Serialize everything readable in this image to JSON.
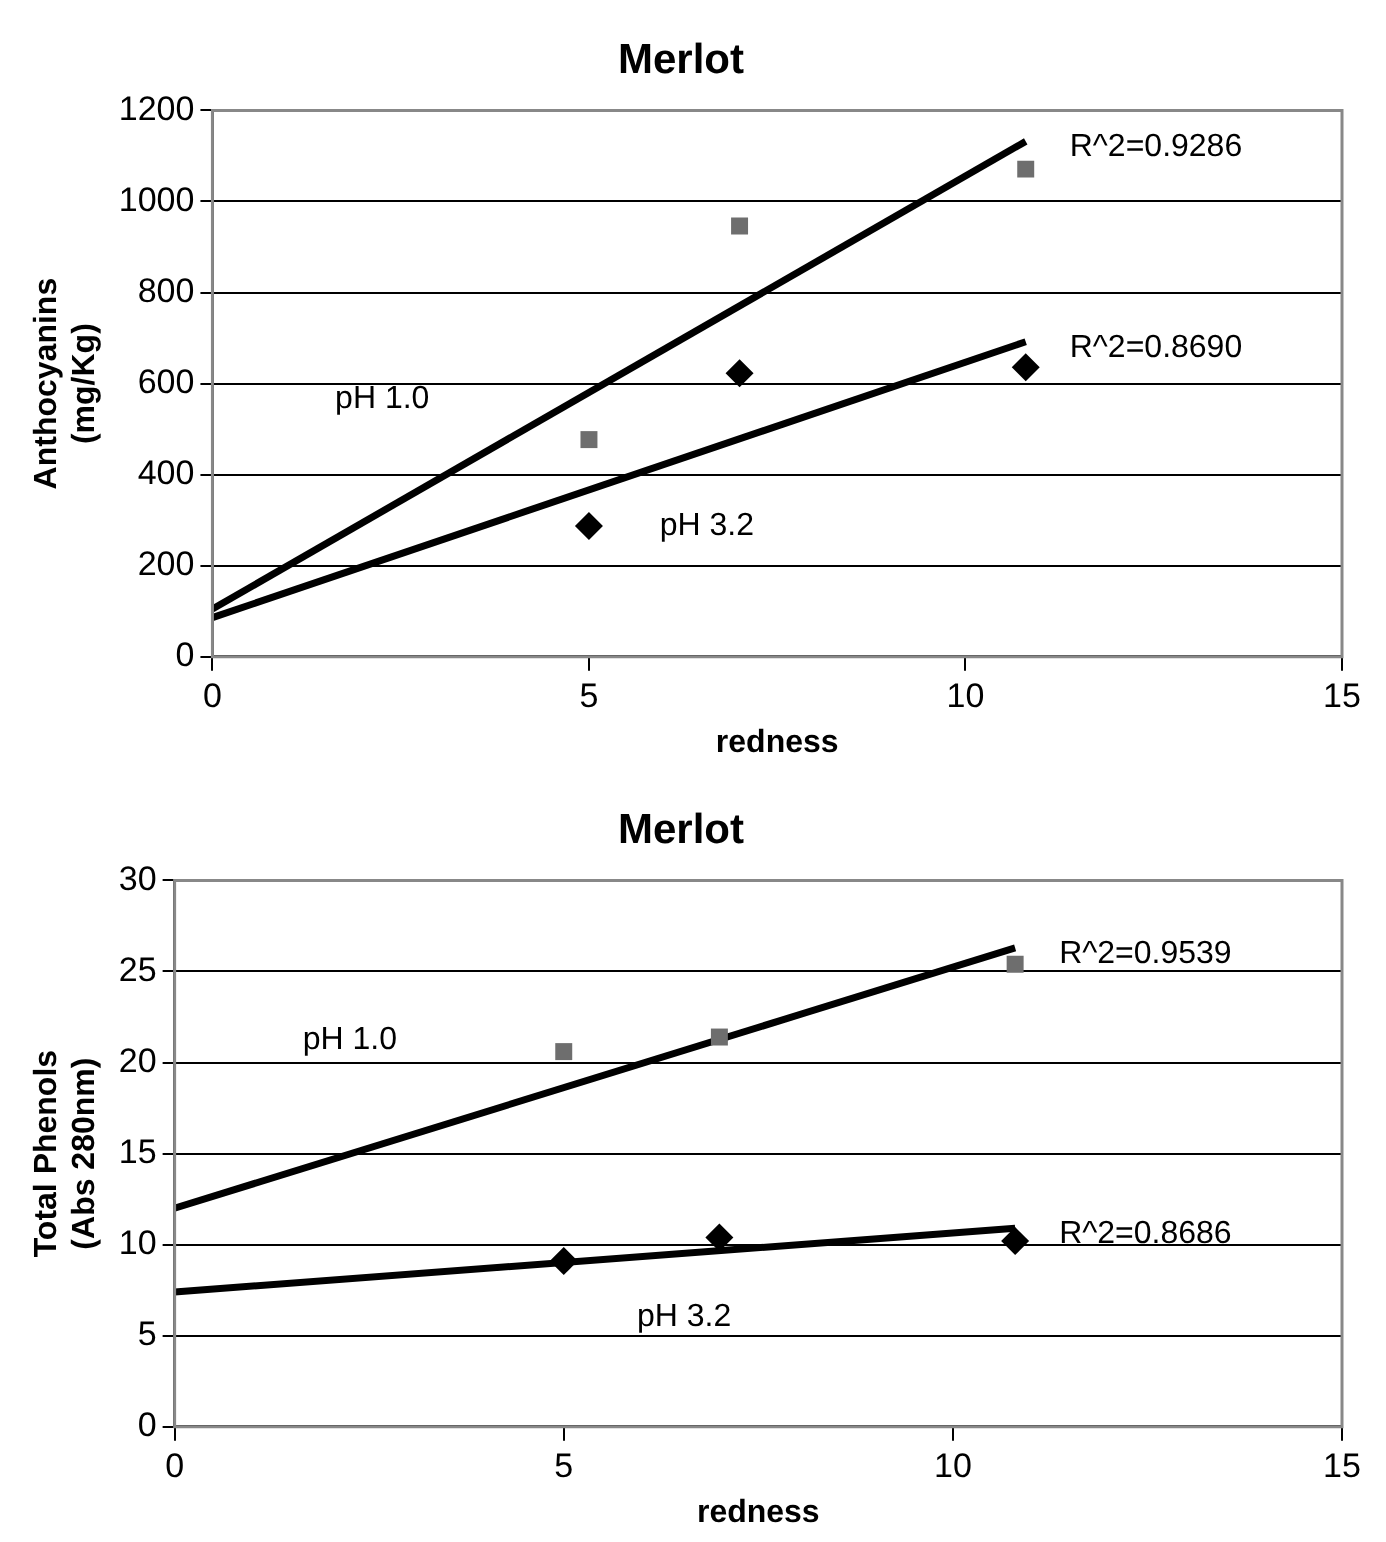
{
  "chart_data": [
    {
      "type": "scatter",
      "title": "Merlot",
      "xlabel": "redness",
      "ylabel": "Anthocyanins (mg/Kg)",
      "xlim": [
        0,
        15
      ],
      "xticks": [
        0,
        5,
        10,
        15
      ],
      "ylim": [
        0,
        1200
      ],
      "yticks": [
        0,
        200,
        400,
        600,
        800,
        1000,
        1200
      ],
      "grid": "y",
      "legend": false,
      "series": [
        {
          "type": "scatter",
          "marker": "square",
          "color": "#6e6e6e",
          "x": [
            5,
            7,
            10.8
          ],
          "values": [
            477,
            946,
            1071
          ]
        },
        {
          "type": "scatter",
          "marker": "diamond",
          "color": "#000000",
          "x": [
            5,
            7,
            10.8
          ],
          "values": [
            287,
            623,
            636
          ]
        },
        {
          "type": "line",
          "marker": "none",
          "color": "#000000",
          "x": [
            0,
            10.8
          ],
          "values": [
            105,
            1132
          ]
        },
        {
          "type": "line",
          "marker": "none",
          "color": "#000000",
          "x": [
            0,
            10.8
          ],
          "values": [
            86,
            692
          ]
        }
      ],
      "annotations": [
        "pH 1.0",
        "pH 3.2",
        "R^2=0.9286",
        "R^2=0.8690"
      ]
    },
    {
      "type": "scatter",
      "title": "Merlot",
      "xlabel": "redness",
      "ylabel": "Total Phenols (Abs 280nm)",
      "xlim": [
        0,
        15
      ],
      "xticks": [
        0,
        5,
        10,
        15
      ],
      "ylim": [
        0,
        30
      ],
      "yticks": [
        0,
        5,
        10,
        15,
        20,
        25,
        30
      ],
      "grid": "y",
      "legend": false,
      "series": [
        {
          "type": "scatter",
          "marker": "square",
          "color": "#6e6e6e",
          "x": [
            5,
            7,
            10.8
          ],
          "values": [
            20.6,
            21.4,
            25.4
          ]
        },
        {
          "type": "scatter",
          "marker": "diamond",
          "color": "#000000",
          "x": [
            5,
            7,
            10.8
          ],
          "values": [
            9.1,
            10.4,
            10.2
          ]
        },
        {
          "type": "line",
          "marker": "none",
          "color": "#000000",
          "x": [
            0,
            10.8
          ],
          "values": [
            12.0,
            26.3
          ]
        },
        {
          "type": "line",
          "marker": "none",
          "color": "#000000",
          "x": [
            0,
            10.8
          ],
          "values": [
            7.4,
            10.9
          ]
        }
      ],
      "annotations": [
        "pH 1.0",
        "pH 3.2",
        "R^2=0.9539",
        "R^2=0.8686"
      ]
    }
  ]
}
